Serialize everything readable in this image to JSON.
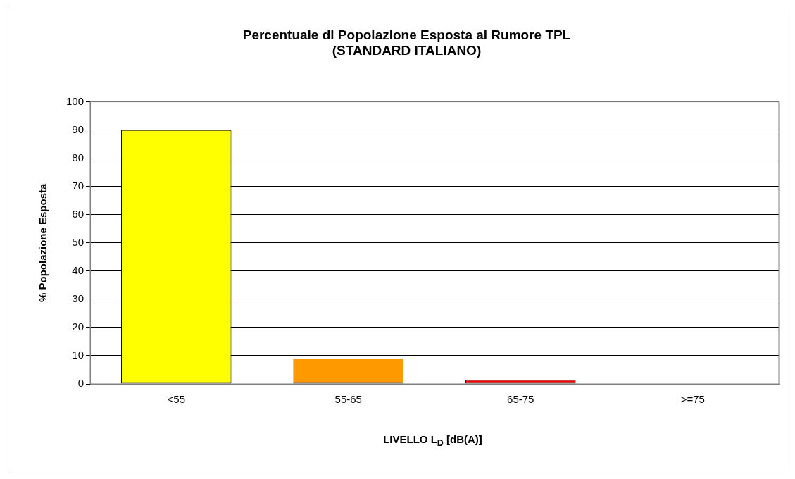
{
  "chart_data": {
    "type": "bar",
    "title": "Percentuale di Popolazione Esposta al Rumore TPL",
    "subtitle": "(STANDARD ITALIANO)",
    "xlabel": "LIVELLO L$_{D}$ [dB(A)]",
    "ylabel": "% Popolazione Esposta",
    "categories": [
      "<55",
      "55-65",
      "65-75",
      ">=75"
    ],
    "values": [
      90,
      9,
      1.4,
      0
    ],
    "colors": [
      "#ffff00",
      "#ff9900",
      "#ff0000",
      "#999999"
    ],
    "ylim": [
      0,
      100
    ],
    "yticks": [
      0,
      10,
      20,
      30,
      40,
      50,
      60,
      70,
      80,
      90,
      100
    ],
    "grid": "y",
    "legend": false
  }
}
